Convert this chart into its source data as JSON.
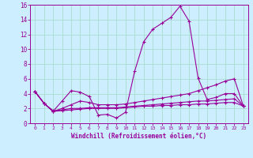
{
  "background_color": "#cceeff",
  "grid_color": "#aaddcc",
  "line_color": "#990099",
  "xlabel": "Windchill (Refroidissement éolien,°C)",
  "xlim": [
    -0.5,
    23.5
  ],
  "ylim": [
    0,
    16
  ],
  "yticks": [
    0,
    2,
    4,
    6,
    8,
    10,
    12,
    14,
    16
  ],
  "xticks": [
    0,
    1,
    2,
    3,
    4,
    5,
    6,
    7,
    8,
    9,
    10,
    11,
    12,
    13,
    14,
    15,
    16,
    17,
    18,
    19,
    20,
    21,
    22,
    23
  ],
  "series1_x": [
    0,
    1,
    2,
    3,
    4,
    5,
    6,
    7,
    8,
    9,
    10,
    11,
    12,
    13,
    14,
    15,
    16,
    17,
    18,
    19,
    20,
    21,
    22,
    23
  ],
  "series1_y": [
    4.3,
    2.7,
    1.6,
    3.0,
    4.4,
    4.2,
    3.6,
    1.1,
    1.2,
    0.7,
    1.5,
    7.0,
    11.0,
    12.7,
    13.5,
    14.3,
    15.8,
    13.8,
    6.1,
    3.2,
    3.5,
    4.0,
    4.0,
    2.3
  ],
  "series2_x": [
    0,
    1,
    2,
    3,
    4,
    5,
    6,
    7,
    8,
    9,
    10,
    11,
    12,
    13,
    14,
    15,
    16,
    17,
    18,
    19,
    20,
    21,
    22,
    23
  ],
  "series2_y": [
    4.3,
    2.7,
    1.6,
    2.0,
    2.5,
    3.0,
    2.8,
    2.5,
    2.5,
    2.5,
    2.6,
    2.8,
    3.0,
    3.2,
    3.4,
    3.6,
    3.8,
    4.0,
    4.4,
    4.8,
    5.2,
    5.7,
    6.0,
    2.3
  ],
  "series3_x": [
    0,
    1,
    2,
    3,
    4,
    5,
    6,
    7,
    8,
    9,
    10,
    11,
    12,
    13,
    14,
    15,
    16,
    17,
    18,
    19,
    20,
    21,
    22,
    23
  ],
  "series3_y": [
    4.3,
    2.7,
    1.7,
    1.8,
    2.0,
    2.0,
    2.1,
    2.1,
    2.1,
    2.1,
    2.2,
    2.3,
    2.4,
    2.5,
    2.6,
    2.7,
    2.8,
    2.9,
    3.0,
    3.0,
    3.1,
    3.2,
    3.3,
    2.3
  ],
  "series4_x": [
    0,
    1,
    2,
    3,
    4,
    5,
    6,
    7,
    8,
    9,
    10,
    11,
    12,
    13,
    14,
    15,
    16,
    17,
    18,
    19,
    20,
    21,
    22,
    23
  ],
  "series4_y": [
    4.3,
    2.7,
    1.6,
    1.7,
    1.8,
    1.9,
    2.0,
    2.0,
    2.0,
    2.0,
    2.1,
    2.2,
    2.3,
    2.3,
    2.4,
    2.4,
    2.5,
    2.5,
    2.6,
    2.6,
    2.7,
    2.8,
    2.8,
    2.3
  ]
}
